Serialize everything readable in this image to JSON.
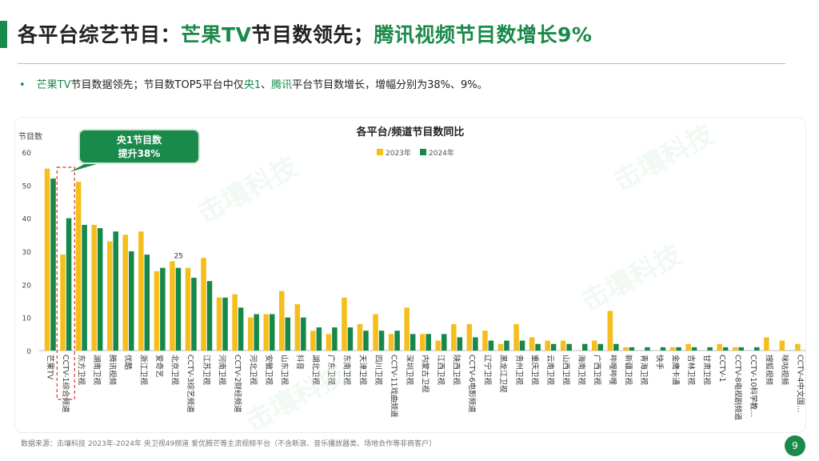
{
  "header": {
    "title_a": "各平台综艺节目：",
    "title_b": "芒果TV",
    "title_c": "节目数领先；",
    "title_d": "腾讯视频",
    "title_e": "节目数增长9%"
  },
  "bullet": {
    "marker": "•",
    "s1": "芒果TV",
    "s2": "节目数据领先；节目数TOP5平台中仅",
    "s3": "央1",
    "s4": "、",
    "s5": "腾讯",
    "s6": "平台节目数增长，增幅分别为38%、9%。"
  },
  "watermark": "击壤科技",
  "source": "数据来源：击壤科技 2023年-2024年 央卫视49频道 爱优腾芒等主流视频平台（不含新浪、音乐播放器类、场地合作等非商客户）",
  "page_number": "9",
  "colors": {
    "y2023": "#F5BE1B",
    "y2024": "#15884A",
    "accent": "#1a8a4a",
    "callout_border": "#d9382c"
  },
  "chart_data": {
    "type": "bar",
    "title": "各平台/频道节目数同比",
    "ylabel": "节目数",
    "ylim": [
      0,
      60
    ],
    "yticks": [
      0,
      10,
      20,
      30,
      40,
      50,
      60
    ],
    "grid": false,
    "legend_position": "top",
    "categories": [
      "芒果TV",
      "CCTV-1综合频道",
      "东方卫视",
      "湖南卫视",
      "腾讯视频",
      "优酷",
      "浙江卫视",
      "爱奇艺",
      "北京卫视",
      "CCTV-3综艺频道",
      "江苏卫视",
      "河南卫视",
      "CCTV-2财经频道",
      "河北卫视",
      "安徽卫视",
      "山东卫视",
      "抖音",
      "湖北卫视",
      "广东卫视",
      "东南卫视",
      "天津卫视",
      "四川卫视",
      "CCTV-11戏曲频道",
      "深圳卫视",
      "内蒙古卫视",
      "江西卫视",
      "陕西卫视",
      "CCTV-6电影频道",
      "辽宁卫视",
      "黑龙江卫视",
      "贵州卫视",
      "重庆卫视",
      "云南卫视",
      "山西卫视",
      "海南卫视",
      "广西卫视",
      "哔哩哔哩",
      "新疆卫视",
      "青海卫视",
      "快手",
      "金鹰卡通",
      "吉林卫视",
      "甘肃卫视",
      "CCTV-1",
      "CCTV-8电视剧频道",
      "CCTV-10科学教…",
      "搜狐视频",
      "咪咕视频",
      "CCTV-4中文国…"
    ],
    "series": [
      {
        "name": "2023年",
        "values": [
          55,
          29,
          51,
          38,
          33,
          35,
          36,
          24,
          27,
          25,
          28,
          16,
          17,
          10,
          11,
          18,
          14,
          6,
          5,
          16,
          8,
          11,
          5,
          13,
          5,
          3,
          8,
          8,
          6,
          2,
          8,
          4,
          3,
          3,
          0,
          3,
          12,
          1,
          0,
          0,
          1,
          2,
          0,
          2,
          1,
          0,
          4,
          3,
          2
        ]
      },
      {
        "name": "2024年",
        "values": [
          52,
          40,
          38,
          37,
          36,
          30,
          29,
          25,
          25,
          22,
          21,
          16,
          13,
          11,
          11,
          10,
          10,
          7,
          7,
          7,
          6,
          6,
          6,
          5,
          5,
          5,
          4,
          4,
          3,
          3,
          3,
          2,
          2,
          2,
          2,
          2,
          2,
          1,
          1,
          1,
          1,
          1,
          1,
          1,
          1,
          1,
          0,
          0,
          0
        ]
      }
    ],
    "annotations": [
      {
        "category": "北京卫视",
        "text": "25"
      }
    ],
    "callout": {
      "line1": "央1节目数",
      "line2": "提升38%",
      "category": "CCTV-1综合频道"
    }
  }
}
